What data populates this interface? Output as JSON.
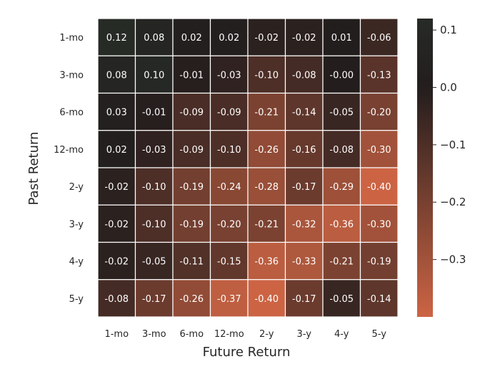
{
  "chart_data": {
    "type": "heatmap",
    "xlabel": "Future Return",
    "ylabel": "Past Return",
    "x_categories": [
      "1-mo",
      "3-mo",
      "6-mo",
      "12-mo",
      "2-y",
      "3-y",
      "4-y",
      "5-y"
    ],
    "y_categories": [
      "1-mo",
      "3-mo",
      "6-mo",
      "12-mo",
      "2-y",
      "3-y",
      "4-y",
      "5-y"
    ],
    "values": [
      [
        0.12,
        0.08,
        0.02,
        0.02,
        -0.02,
        -0.02,
        0.01,
        -0.06
      ],
      [
        0.08,
        0.1,
        -0.01,
        -0.03,
        -0.1,
        -0.08,
        -0.0,
        -0.13
      ],
      [
        0.03,
        -0.01,
        -0.09,
        -0.09,
        -0.21,
        -0.14,
        -0.05,
        -0.2
      ],
      [
        0.02,
        -0.03,
        -0.09,
        -0.1,
        -0.26,
        -0.16,
        -0.08,
        -0.3
      ],
      [
        -0.02,
        -0.1,
        -0.19,
        -0.24,
        -0.28,
        -0.17,
        -0.29,
        -0.4
      ],
      [
        -0.02,
        -0.1,
        -0.19,
        -0.2,
        -0.21,
        -0.32,
        -0.36,
        -0.3
      ],
      [
        -0.02,
        -0.05,
        -0.11,
        -0.15,
        -0.36,
        -0.33,
        -0.21,
        -0.19
      ],
      [
        -0.08,
        -0.17,
        -0.26,
        -0.37,
        -0.4,
        -0.17,
        -0.05,
        -0.14
      ]
    ],
    "value_labels": [
      [
        "0.12",
        "0.08",
        "0.02",
        "0.02",
        "-0.02",
        "-0.02",
        "0.01",
        "-0.06"
      ],
      [
        "0.08",
        "0.10",
        "-0.01",
        "-0.03",
        "-0.10",
        "-0.08",
        "-0.00",
        "-0.13"
      ],
      [
        "0.03",
        "-0.01",
        "-0.09",
        "-0.09",
        "-0.21",
        "-0.14",
        "-0.05",
        "-0.20"
      ],
      [
        "0.02",
        "-0.03",
        "-0.09",
        "-0.10",
        "-0.26",
        "-0.16",
        "-0.08",
        "-0.30"
      ],
      [
        "-0.02",
        "-0.10",
        "-0.19",
        "-0.24",
        "-0.28",
        "-0.17",
        "-0.29",
        "-0.40"
      ],
      [
        "-0.02",
        "-0.10",
        "-0.19",
        "-0.20",
        "-0.21",
        "-0.32",
        "-0.36",
        "-0.30"
      ],
      [
        "-0.02",
        "-0.05",
        "-0.11",
        "-0.15",
        "-0.36",
        "-0.33",
        "-0.21",
        "-0.19"
      ],
      [
        "-0.08",
        "-0.17",
        "-0.26",
        "-0.37",
        "-0.40",
        "-0.17",
        "-0.05",
        "-0.14"
      ]
    ],
    "colorbar": {
      "vmin": -0.4,
      "vmax": 0.12,
      "center": 0.0,
      "ticks": [
        0.1,
        0.0,
        -0.1,
        -0.2,
        -0.3
      ],
      "tick_labels": [
        "0.1",
        "0.0",
        "−0.1",
        "−0.2",
        "−0.3"
      ],
      "position": "right"
    },
    "colors": {
      "max": "#2e4a3c",
      "center": "#231d1d",
      "min": "#cc6444",
      "grid_line": "#ffffff",
      "cell_text": "#ffffff",
      "text": "#262626"
    }
  }
}
